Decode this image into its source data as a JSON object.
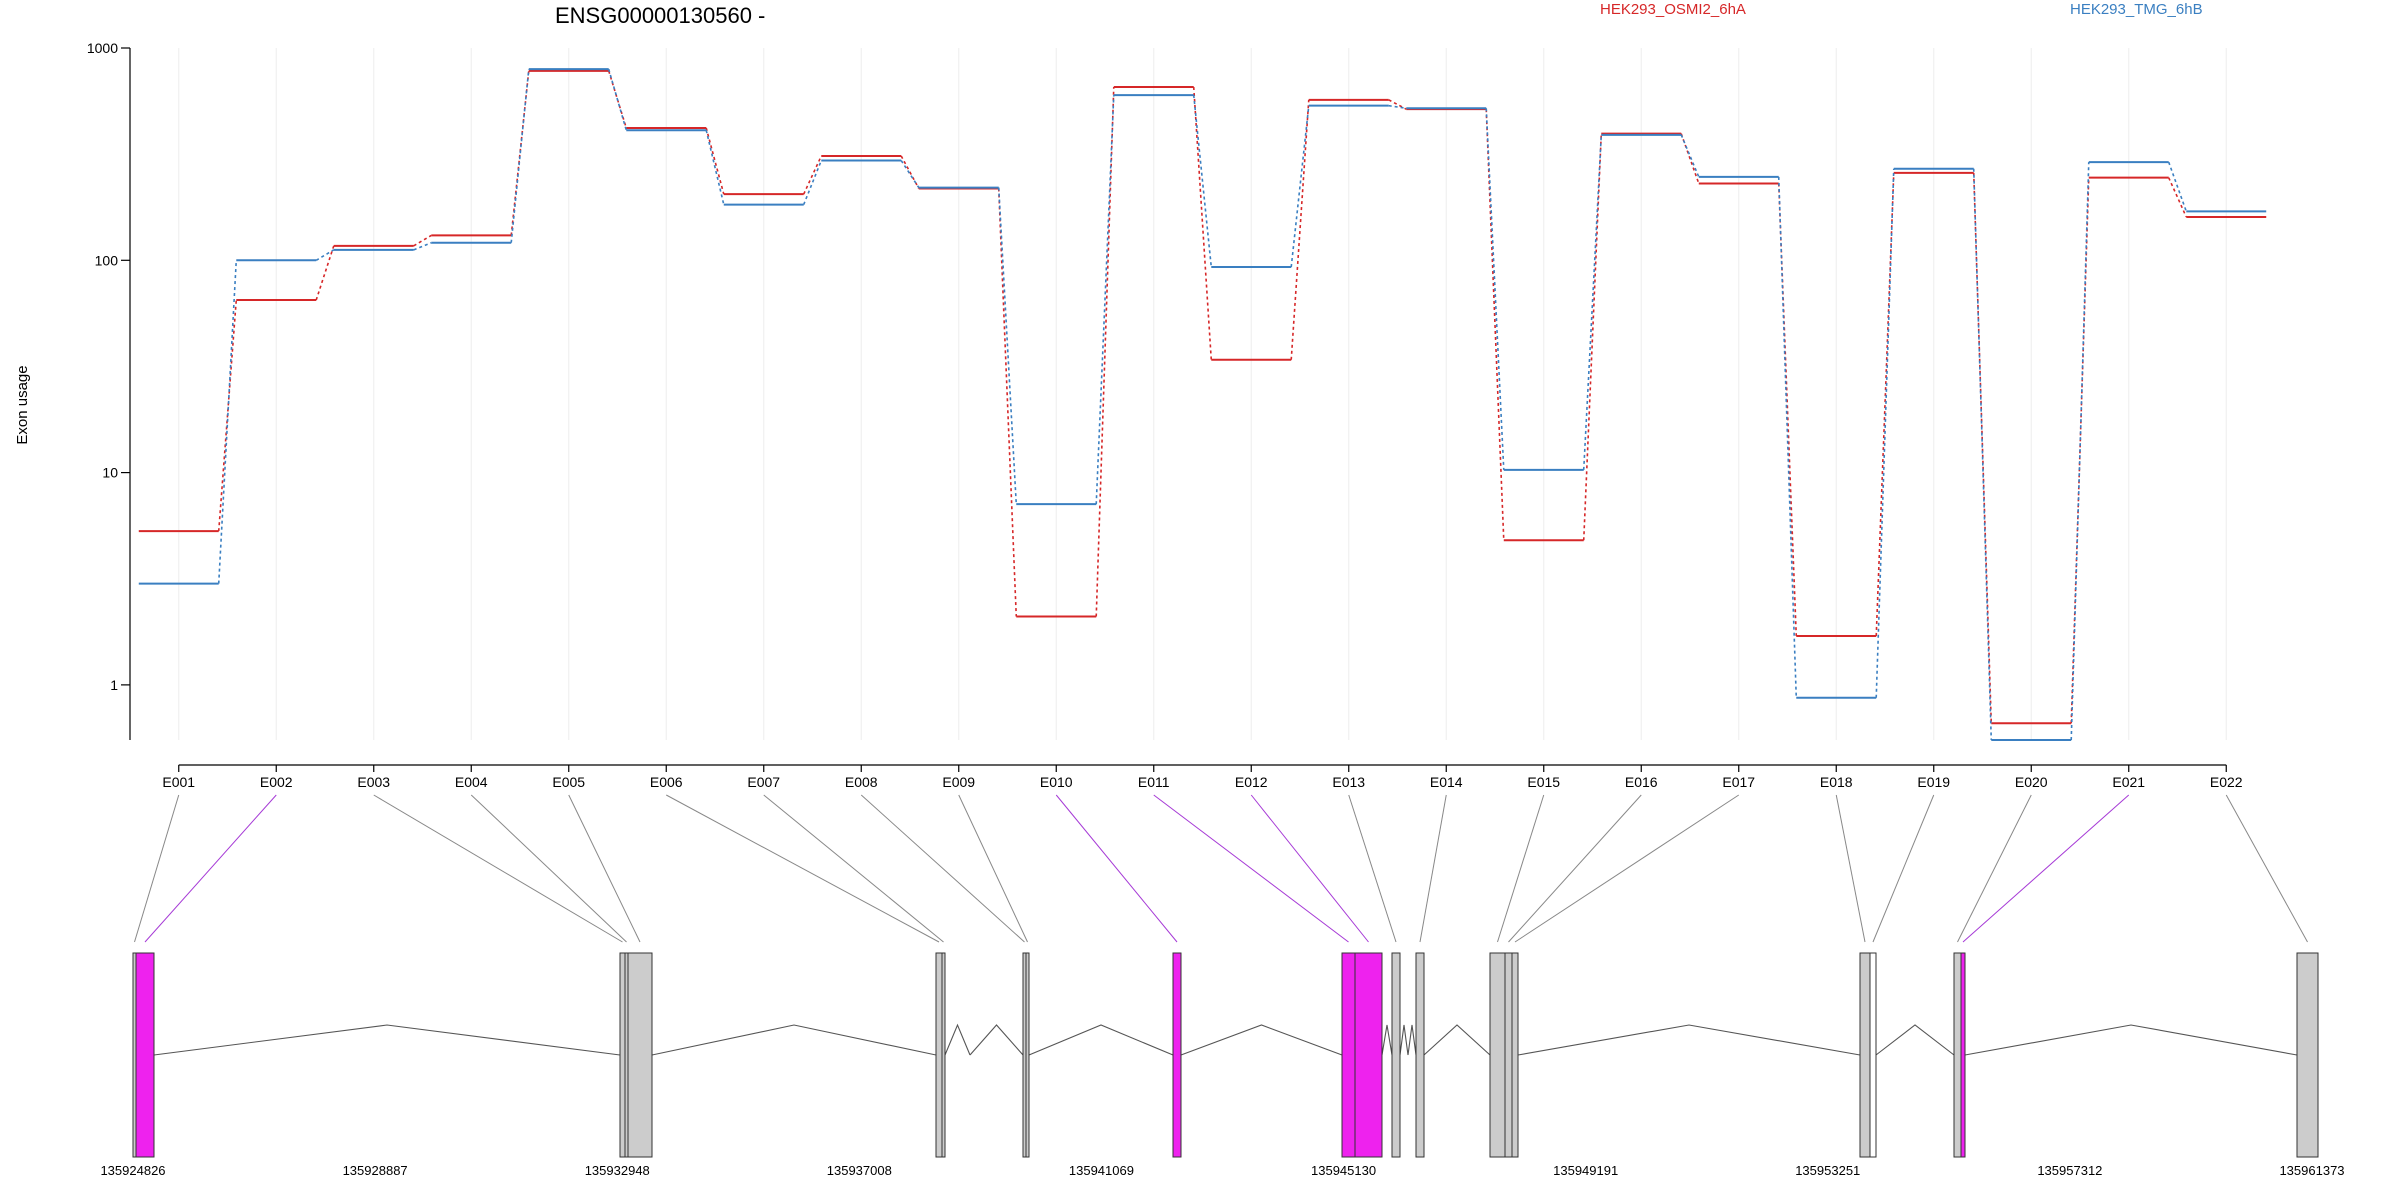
{
  "chart_data": {
    "type": "line",
    "title": "ENSG00000130560 -",
    "ylabel": "Exon usage",
    "yscale": "log",
    "ylim": [
      0.55,
      1000
    ],
    "yticks": [
      "1000",
      "100",
      "10",
      "1"
    ],
    "grid": "vertical",
    "legend": "top",
    "categories": [
      "E001",
      "E002",
      "E003",
      "E004",
      "E005",
      "E006",
      "E007",
      "E008",
      "E009",
      "E010",
      "E011",
      "E012",
      "E013",
      "E014",
      "E015",
      "E016",
      "E017",
      "E018",
      "E019",
      "E020",
      "E021",
      "E022"
    ],
    "series": [
      {
        "name": "HEK293_OSMI2_6hA",
        "color": "#d62728",
        "values": [
          5.3,
          65,
          117,
          131,
          780,
          420,
          205,
          310,
          218,
          2.1,
          655,
          34,
          570,
          515,
          4.8,
          395,
          230,
          1.7,
          258,
          0.66,
          245,
          160
        ]
      },
      {
        "name": "HEK293_TMG_6hB",
        "color": "#3a7fc1",
        "values": [
          3.0,
          100,
          112,
          121,
          795,
          410,
          183,
          295,
          220,
          7.1,
          600,
          93,
          535,
          520,
          10.3,
          390,
          247,
          0.87,
          270,
          0.55,
          290,
          170
        ]
      }
    ],
    "gene_model": {
      "coordinates": [
        "135924826",
        "135928887",
        "135932948",
        "135937008",
        "135941069",
        "135945130",
        "135949191",
        "135953251",
        "135957312",
        "135961373"
      ],
      "highlight_color": "#ee22ee",
      "exon_color": "#cccccc",
      "highlighted_exons": [
        "E002",
        "E010",
        "E011",
        "E012",
        "E021"
      ]
    }
  }
}
